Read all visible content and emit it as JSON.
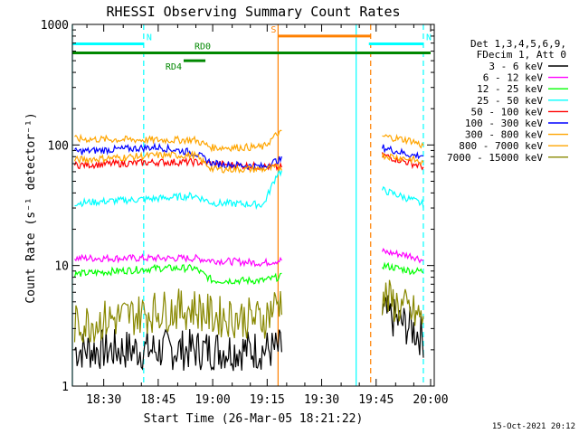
{
  "chart_data": {
    "type": "line",
    "title": "RHESSI Observing Summary Count Rates",
    "xlabel": "Start Time (26-Mar-05 18:21:22)",
    "ylabel": "Count Rate (s⁻¹ detector⁻¹)",
    "y_scale": "log",
    "ylim": [
      1,
      1000
    ],
    "xlim": [
      "18:21:22",
      "20:01:00"
    ],
    "x_ticks": [
      "18:30",
      "18:45",
      "19:00",
      "19:15",
      "19:30",
      "19:45",
      "20:00"
    ],
    "y_ticks": [
      "1",
      "10",
      "100",
      "1000"
    ],
    "grid": false,
    "legend_position": "right",
    "legend_header": [
      "Det 1,3,4,5,6,9,",
      "FDecim 1, Att 0"
    ],
    "footer": "15-Oct-2021 20:12",
    "series": [
      {
        "name": "3 - 6 keV",
        "color": "#000000",
        "x": [
          "18:22",
          "18:45",
          "18:55",
          "19:00",
          "19:14",
          "19:18",
          "19:47",
          "19:55",
          "19:58"
        ],
        "y": [
          2,
          2,
          2,
          2,
          2,
          2,
          4,
          3,
          2.5
        ]
      },
      {
        "name": "6 - 12 keV",
        "color": "#ff00ff",
        "x": [
          "18:22",
          "18:45",
          "18:55",
          "19:00",
          "19:14",
          "19:18",
          "19:47",
          "19:55",
          "19:58"
        ],
        "y": [
          11.5,
          11.5,
          11.5,
          11,
          10.5,
          11,
          13,
          12,
          11
        ]
      },
      {
        "name": "12 - 25 keV",
        "color": "#00ff00",
        "x": [
          "18:22",
          "18:45",
          "18:55",
          "19:00",
          "19:14",
          "19:18",
          "19:47",
          "19:55",
          "19:58"
        ],
        "y": [
          8.5,
          9.5,
          9.5,
          7.5,
          7.5,
          8,
          10,
          9,
          9
        ]
      },
      {
        "name": "25 - 50 keV",
        "color": "#00ffff",
        "x": [
          "18:22",
          "18:45",
          "18:55",
          "19:00",
          "19:14",
          "19:18",
          "19:47",
          "19:55",
          "19:58"
        ],
        "y": [
          33,
          36,
          38,
          33,
          32,
          60,
          42,
          35,
          32
        ]
      },
      {
        "name": "50 - 100 keV",
        "color": "#ff0000",
        "x": [
          "18:22",
          "18:45",
          "18:55",
          "19:00",
          "19:14",
          "19:18",
          "19:47",
          "19:55",
          "19:58"
        ],
        "y": [
          68,
          72,
          72,
          70,
          66,
          65,
          82,
          70,
          66
        ]
      },
      {
        "name": "100 - 300 keV",
        "color": "#0000ff",
        "x": [
          "18:22",
          "18:45",
          "18:55",
          "19:00",
          "19:14",
          "19:18",
          "19:47",
          "19:55",
          "19:58"
        ],
        "y": [
          88,
          96,
          86,
          70,
          66,
          75,
          95,
          82,
          82
        ]
      },
      {
        "name": "300 - 800 keV",
        "color": "#ffa500",
        "x": [
          "18:22",
          "18:45",
          "18:55",
          "19:00",
          "19:14",
          "19:18",
          "19:47",
          "19:55",
          "19:58"
        ],
        "y": [
          112,
          110,
          110,
          95,
          96,
          125,
          118,
          108,
          98
        ]
      },
      {
        "name": "800 - 7000 keV",
        "color": "#ffa500",
        "x": [
          "18:22",
          "18:45",
          "18:55",
          "19:00",
          "19:14",
          "19:18",
          "19:47",
          "19:55",
          "19:58"
        ],
        "y": [
          75,
          82,
          82,
          63,
          63,
          65,
          82,
          76,
          70
        ]
      },
      {
        "name": "7000 - 15000 keV",
        "color": "#888800",
        "x": [
          "18:22",
          "18:45",
          "18:55",
          "19:00",
          "19:14",
          "19:18",
          "19:47",
          "19:55",
          "19:58"
        ],
        "y": [
          3.2,
          4.2,
          4.4,
          3.8,
          3.6,
          5,
          5.5,
          4,
          3.6
        ]
      }
    ],
    "flag_bars": [
      {
        "label": "N",
        "color": "#00ffff",
        "start": "18:21:22",
        "end": "18:41:00",
        "level": 690
      },
      {
        "label": "N",
        "color": "#00ffff",
        "start": "19:43:00",
        "end": "19:58:00",
        "level": 690
      },
      {
        "label": "RD0",
        "color": "#008800",
        "start": "18:21:22",
        "end": "20:00:00",
        "level": 580
      },
      {
        "label": "RD4",
        "color": "#008800",
        "start": "18:52:00",
        "end": "18:58:00",
        "level": 500
      },
      {
        "label": "S",
        "color": "#ff8000",
        "start": "19:18:00",
        "end": "19:43:30",
        "level": 800
      }
    ],
    "vertical_markers": [
      {
        "x": "18:21:22",
        "color": "#00ffff",
        "style": "solid"
      },
      {
        "x": "18:41:00",
        "color": "#00ffff",
        "style": "dashed"
      },
      {
        "x": "19:18:00",
        "color": "#ff8000",
        "style": "solid"
      },
      {
        "x": "19:39:30",
        "color": "#00ffff",
        "style": "solid"
      },
      {
        "x": "19:43:30",
        "color": "#ff8000",
        "style": "dashed"
      },
      {
        "x": "19:58:00",
        "color": "#00ffff",
        "style": "dashed"
      }
    ]
  }
}
